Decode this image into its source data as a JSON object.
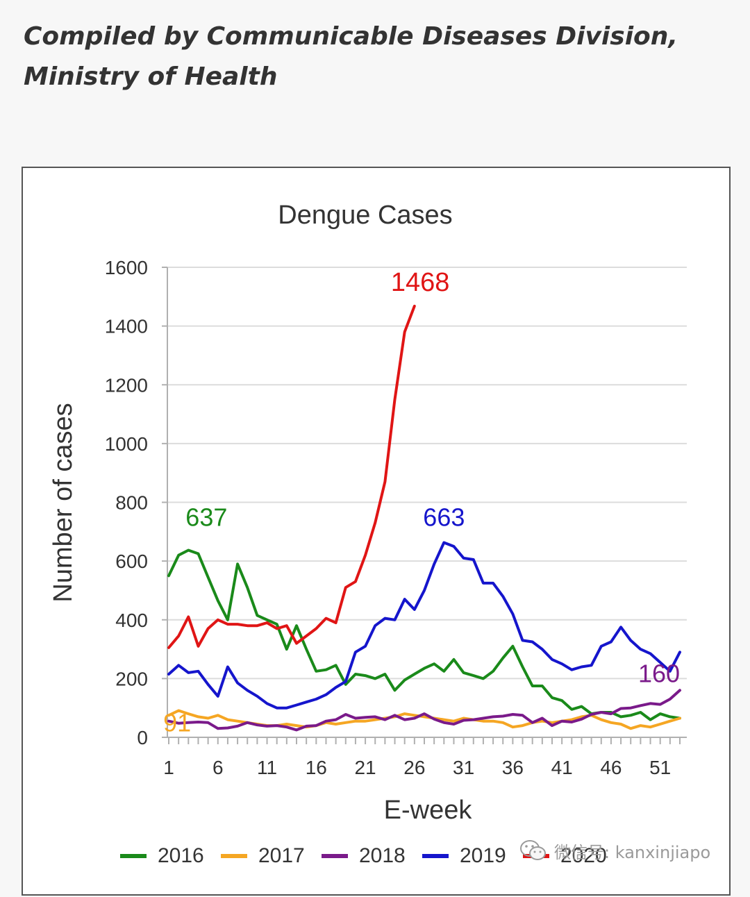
{
  "header": {
    "line1": "Compiled by Communicable Diseases Division,",
    "line2": "Ministry of Health"
  },
  "watermark": {
    "text": "微信号: kanxinjiapo",
    "icon": "wechat-icon"
  },
  "chart_data": {
    "type": "line",
    "title": "Dengue Cases",
    "xlabel": "E-week",
    "ylabel": "Number of cases",
    "xlim": [
      1,
      53
    ],
    "ylim": [
      0,
      1600
    ],
    "yticks": [
      0,
      200,
      400,
      600,
      800,
      1000,
      1200,
      1400,
      1600
    ],
    "xticks": [
      1,
      6,
      11,
      16,
      21,
      26,
      31,
      36,
      41,
      46,
      51
    ],
    "grid": true,
    "legend_position": "bottom",
    "series": [
      {
        "name": "2016",
        "color": "#1a8a1a",
        "x_start": 1,
        "values": [
          550,
          620,
          637,
          625,
          545,
          465,
          400,
          590,
          510,
          415,
          400,
          385,
          300,
          380,
          300,
          225,
          230,
          245,
          180,
          215,
          210,
          200,
          215,
          160,
          195,
          215,
          235,
          250,
          225,
          265,
          220,
          210,
          200,
          225,
          270,
          310,
          240,
          175,
          175,
          135,
          125,
          95,
          105,
          80,
          85,
          85,
          70,
          75,
          85,
          60,
          80,
          70,
          65
        ]
      },
      {
        "name": "2017",
        "color": "#f5a623",
        "x_start": 1,
        "values": [
          75,
          91,
          80,
          70,
          65,
          75,
          60,
          55,
          50,
          45,
          40,
          40,
          45,
          40,
          35,
          40,
          50,
          45,
          50,
          55,
          55,
          60,
          65,
          70,
          80,
          75,
          70,
          65,
          60,
          55,
          65,
          60,
          55,
          55,
          50,
          35,
          40,
          50,
          55,
          50,
          55,
          60,
          70,
          75,
          60,
          50,
          45,
          30,
          40,
          35,
          45,
          55,
          65
        ]
      },
      {
        "name": "2018",
        "color": "#7a1a8a",
        "x_start": 1,
        "values": [
          55,
          48,
          50,
          52,
          50,
          30,
          32,
          38,
          50,
          42,
          38,
          40,
          35,
          25,
          38,
          40,
          55,
          60,
          78,
          65,
          68,
          70,
          60,
          75,
          60,
          65,
          80,
          62,
          50,
          45,
          58,
          60,
          65,
          70,
          72,
          78,
          75,
          50,
          65,
          40,
          55,
          52,
          62,
          78,
          85,
          80,
          98,
          100,
          108,
          115,
          112,
          130,
          160
        ]
      },
      {
        "name": "2019",
        "color": "#1515cc",
        "x_start": 1,
        "values": [
          215,
          245,
          220,
          225,
          180,
          140,
          240,
          185,
          160,
          140,
          115,
          100,
          100,
          110,
          120,
          130,
          145,
          170,
          190,
          290,
          310,
          380,
          405,
          400,
          470,
          435,
          500,
          590,
          663,
          650,
          610,
          605,
          525,
          525,
          480,
          420,
          330,
          325,
          300,
          265,
          250,
          230,
          240,
          245,
          310,
          325,
          375,
          330,
          300,
          285,
          255,
          225,
          290
        ]
      },
      {
        "name": "2020",
        "color": "#e01515",
        "x_start": 1,
        "values": [
          305,
          345,
          410,
          310,
          370,
          400,
          385,
          385,
          380,
          380,
          390,
          370,
          380,
          320,
          345,
          370,
          405,
          390,
          510,
          530,
          620,
          730,
          870,
          1150,
          1380,
          1468
        ]
      }
    ],
    "annotations": [
      {
        "text": "637",
        "series": "2016",
        "x": 3,
        "y": 637
      },
      {
        "text": "91",
        "series": "2017",
        "x": 2,
        "y": 91
      },
      {
        "text": "160",
        "series": "2018",
        "x": 53,
        "y": 160
      },
      {
        "text": "663",
        "series": "2019",
        "x": 29,
        "y": 663
      },
      {
        "text": "1468",
        "series": "2020",
        "x": 26,
        "y": 1468
      }
    ]
  }
}
